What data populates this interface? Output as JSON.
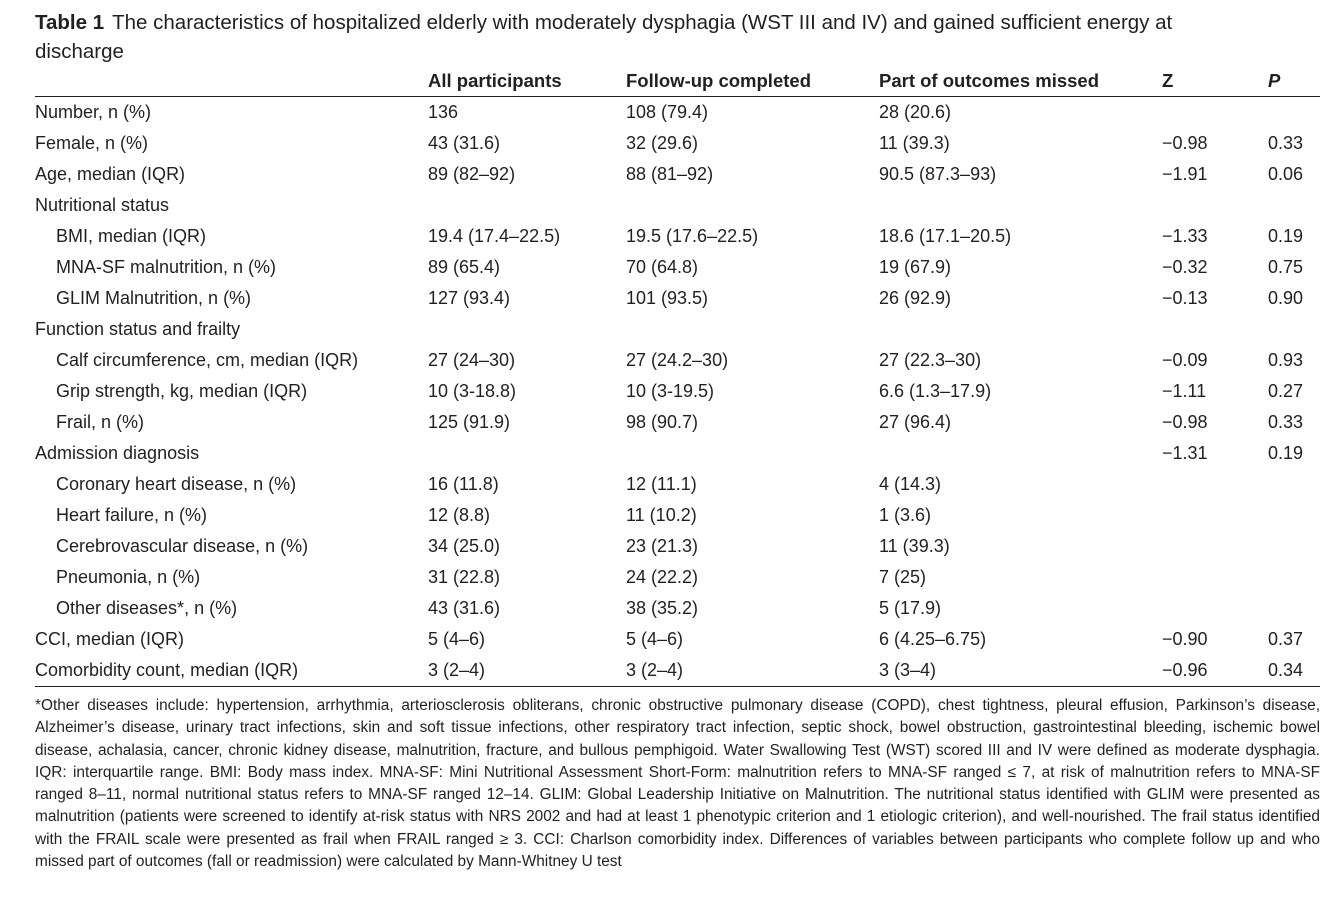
{
  "caption": {
    "label": "Table 1",
    "text": "The characteristics of hospitalized elderly with moderately dysphagia (WST III and IV) and gained sufficient energy at discharge"
  },
  "headers": {
    "label": "",
    "all": "All participants",
    "followup": "Follow-up completed",
    "missed": "Part of outcomes missed",
    "z": "Z",
    "p": "P"
  },
  "rows": [
    {
      "label": "Number, n (%)",
      "all": "136",
      "followup": "108 (79.4)",
      "missed": "28 (20.6)",
      "z": "",
      "p": ""
    },
    {
      "label": "Female, n (%)",
      "all": "43 (31.6)",
      "followup": "32 (29.6)",
      "missed": "11 (39.3)",
      "z": "−0.98",
      "p": "0.33"
    },
    {
      "label": "Age, median (IQR)",
      "all": "89 (82–92)",
      "followup": "88 (81–92)",
      "missed": "90.5 (87.3–93)",
      "z": "−1.91",
      "p": "0.06"
    },
    {
      "label": "Nutritional status",
      "all": "",
      "followup": "",
      "missed": "",
      "z": "",
      "p": ""
    },
    {
      "label": "BMI, median (IQR)",
      "all": "19.4 (17.4–22.5)",
      "followup": "19.5 (17.6–22.5)",
      "missed": "18.6 (17.1–20.5)",
      "z": "−1.33",
      "p": "0.19"
    },
    {
      "label": "MNA-SF malnutrition, n (%)",
      "all": "89 (65.4)",
      "followup": "70 (64.8)",
      "missed": "19 (67.9)",
      "z": "−0.32",
      "p": "0.75"
    },
    {
      "label": "GLIM Malnutrition, n (%)",
      "all": "127 (93.4)",
      "followup": "101 (93.5)",
      "missed": "26 (92.9)",
      "z": "−0.13",
      "p": "0.90"
    },
    {
      "label": "Function status and frailty",
      "all": "",
      "followup": "",
      "missed": "",
      "z": "",
      "p": ""
    },
    {
      "label": "Calf circumference, cm, median (IQR)",
      "all": "27 (24–30)",
      "followup": "27 (24.2–30)",
      "missed": "27 (22.3–30)",
      "z": "−0.09",
      "p": "0.93"
    },
    {
      "label": "Grip strength, kg, median (IQR)",
      "all": "10 (3-18.8)",
      "followup": "10 (3-19.5)",
      "missed": "6.6 (1.3–17.9)",
      "z": "−1.11",
      "p": "0.27"
    },
    {
      "label": "Frail, n (%)",
      "all": "125 (91.9)",
      "followup": "98 (90.7)",
      "missed": "27 (96.4)",
      "z": "−0.98",
      "p": "0.33"
    },
    {
      "label": "Admission diagnosis",
      "all": "",
      "followup": "",
      "missed": "",
      "z": "−1.31",
      "p": "0.19"
    },
    {
      "label": "Coronary heart disease, n (%)",
      "all": "16 (11.8)",
      "followup": "12 (11.1)",
      "missed": "4 (14.3)",
      "z": "",
      "p": ""
    },
    {
      "label": "Heart failure, n (%)",
      "all": "12 (8.8)",
      "followup": "11 (10.2)",
      "missed": "1 (3.6)",
      "z": "",
      "p": ""
    },
    {
      "label": "Cerebrovascular disease, n (%)",
      "all": "34 (25.0)",
      "followup": "23 (21.3)",
      "missed": "11 (39.3)",
      "z": "",
      "p": ""
    },
    {
      "label": "Pneumonia, n (%)",
      "all": "31 (22.8)",
      "followup": "24 (22.2)",
      "missed": "7 (25)",
      "z": "",
      "p": ""
    },
    {
      "label": "Other diseases*, n (%)",
      "all": "43 (31.6)",
      "followup": "38 (35.2)",
      "missed": "5 (17.9)",
      "z": "",
      "p": ""
    },
    {
      "label": "CCI, median (IQR)",
      "all": "5 (4–6)",
      "followup": "5 (4–6)",
      "missed": "6 (4.25–6.75)",
      "z": "−0.90",
      "p": "0.37"
    },
    {
      "label": "Comorbidity count, median (IQR)",
      "all": "3 (2–4)",
      "followup": "3 (2–4)",
      "missed": "3 (3–4)",
      "z": "−0.96",
      "p": "0.34"
    }
  ],
  "footnote": "*Other diseases include: hypertension, arrhythmia, arteriosclerosis obliterans, chronic obstructive pulmonary disease (COPD), chest tightness, pleural effusion, Parkinson’s disease, Alzheimer’s disease, urinary tract infections, skin and soft tissue infections, other respiratory tract infection, septic shock, bowel obstruction, gastrointestinal bleeding, ischemic bowel disease, achalasia, cancer, chronic kidney disease, malnutrition, fracture, and bullous pemphigoid. Water Swallowing Test (WST) scored III and IV were defined as moderate dysphagia. IQR: interquartile range. BMI: Body mass index. MNA-SF: Mini Nutritional Assessment Short-Form: malnutrition refers to MNA-SF ranged ≤ 7, at risk of malnutrition refers to MNA-SF ranged 8–11, normal nutritional status refers to MNA-SF ranged 12–14. GLIM: Global Leadership Initiative on Malnutrition. The nutritional status identified with GLIM were presented as malnutrition (patients were screened to identify at-risk status with NRS 2002 and had at least 1 phenotypic criterion and 1 etiologic criterion), and well-nourished. The frail status identified with the FRAIL scale were presented as frail when FRAIL ranged ≥ 3. CCI: Charlson comorbidity index. Differences of variables between participants who complete follow up and who missed part of outcomes (fall or readmission) were calculated by Mann-Whitney U test"
}
